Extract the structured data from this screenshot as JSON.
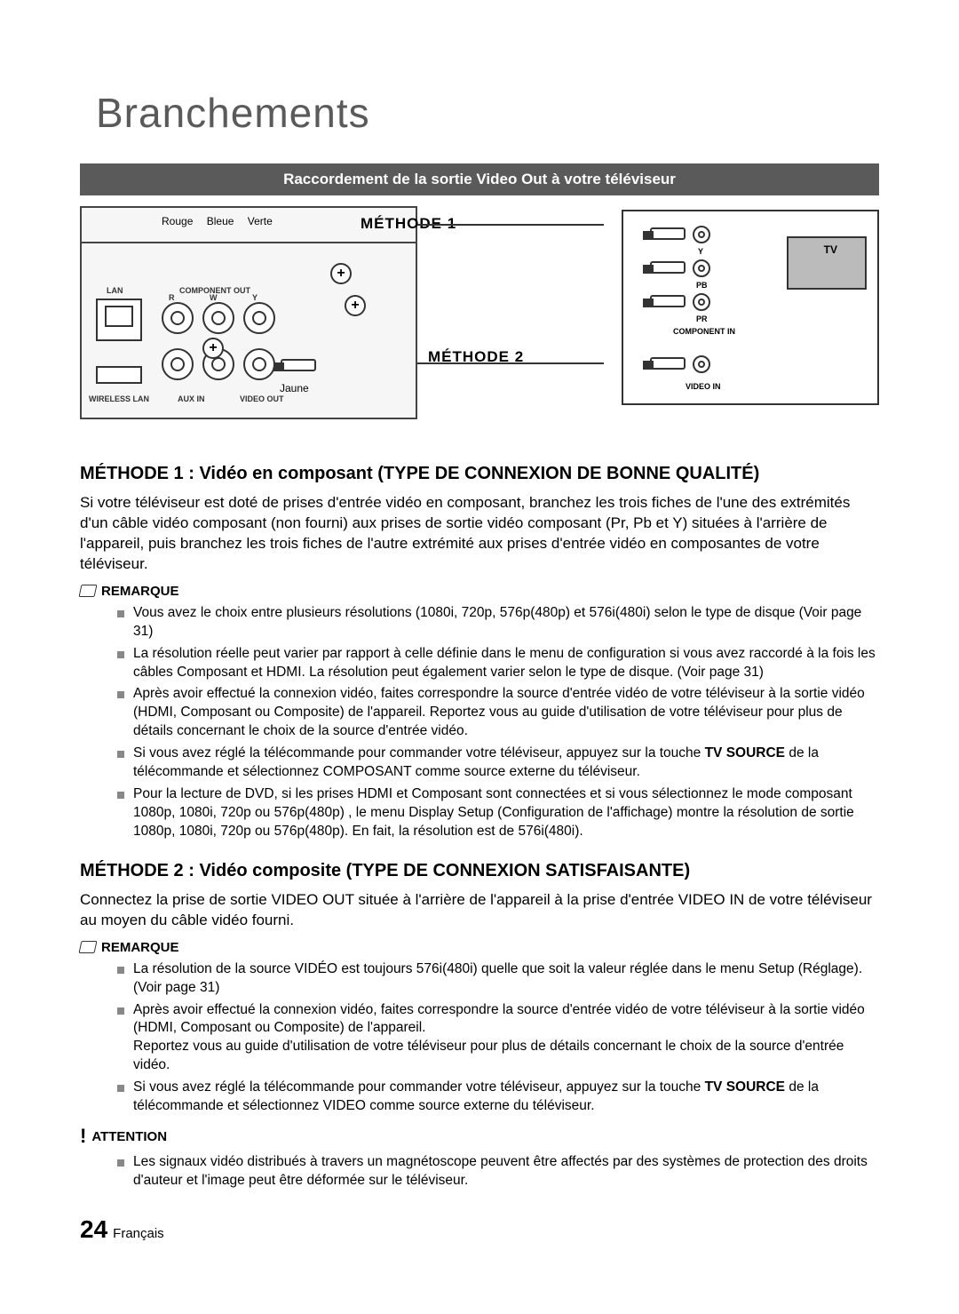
{
  "page": {
    "title": "Branchements",
    "number": "24",
    "language": "Français"
  },
  "header_bar": "Raccordement de la sortie Video Out à votre téléviseur",
  "diagram": {
    "colors": {
      "rouge": "Rouge",
      "bleue": "Bleue",
      "verte": "Verte"
    },
    "methode1": "MÉTHODE 1",
    "methode2": "MÉTHODE 2",
    "jaune": "Jaune",
    "lan": "LAN",
    "component_out": "COMPONENT OUT",
    "wireless_lan": "WIRELESS LAN",
    "aux_in": "AUX IN",
    "video_out": "VIDEO OUT",
    "tv": "TV",
    "component_in": "COMPONENT IN",
    "video_in": "VIDEO IN",
    "y": "Y",
    "pb": "PB",
    "pr": "PR",
    "r": "R",
    "w": "W",
    "yy": "Y"
  },
  "method1": {
    "heading": "MÉTHODE 1 : Vidéo en composant (TYPE DE CONNEXION DE BONNE QUALITÉ)",
    "para": "Si votre téléviseur est doté de prises d'entrée vidéo en composant, branchez les trois fiches de l'une des extrémités d'un câble vidéo composant (non fourni) aux prises de sortie vidéo composant (Pr, Pb et Y) situées à l'arrière de l'appareil, puis branchez les trois fiches de l'autre extrémité aux prises d'entrée vidéo en composantes de votre téléviseur.",
    "remarque_label": "REMARQUE",
    "notes": [
      "Vous avez le choix entre plusieurs résolutions (1080i, 720p, 576p(480p) et 576i(480i) selon le type de disque (Voir page 31)",
      "La résolution réelle peut varier par rapport à celle définie dans le menu de configuration si vous avez raccordé à la fois les câbles Composant et HDMI. La résolution peut également varier selon le type de disque. (Voir page 31)",
      "Après avoir effectué la connexion vidéo, faites correspondre la source d'entrée vidéo de votre téléviseur à la sortie vidéo (HDMI, Composant ou Composite) de l'appareil. Reportez vous au guide d'utilisation de votre téléviseur pour plus de détails concernant le choix de la source d'entrée vidéo.",
      "Si vous avez réglé la télécommande pour commander votre téléviseur, appuyez sur la touche <b>TV SOURCE</b> de la télécommande et sélectionnez COMPOSANT comme source externe du téléviseur.",
      "Pour la lecture de DVD, si les prises HDMI et Composant sont connectées et si vous sélectionnez le mode composant 1080p, 1080i, 720p ou 576p(480p) , le menu Display Setup (Configuration de l'affichage) montre la résolution de sortie 1080p, 1080i, 720p ou 576p(480p). En fait, la résolution est de 576i(480i)."
    ]
  },
  "method2": {
    "heading": "MÉTHODE 2 : Vidéo composite (TYPE DE CONNEXION SATISFAISANTE)",
    "para": "Connectez la prise de sortie VIDEO OUT située à l'arrière de l'appareil à la prise d'entrée VIDEO IN de votre téléviseur au moyen du câble vidéo fourni.",
    "remarque_label": "REMARQUE",
    "notes": [
      "La résolution de la source VIDÉO est toujours 576i(480i) quelle que soit la valeur réglée dans le menu Setup (Réglage). (Voir page 31)",
      "Après avoir effectué la connexion vidéo, faites correspondre la source d'entrée vidéo de votre téléviseur à la sortie vidéo (HDMI, Composant ou Composite) de l'appareil.<br>Reportez vous au guide d'utilisation de votre téléviseur pour plus de détails concernant le choix de la source d'entrée vidéo.",
      "Si vous avez réglé la télécommande pour commander votre téléviseur, appuyez sur la touche <b>TV SOURCE</b> de la télécommande et sélectionnez VIDEO comme source externe du téléviseur."
    ],
    "attention_label": "ATTENTION",
    "attention_notes": [
      "Les signaux vidéo distribués à travers un magnétoscope peuvent être affectés par des systèmes de protection des droits d'auteur et l'image peut être déformée sur le téléviseur."
    ]
  }
}
